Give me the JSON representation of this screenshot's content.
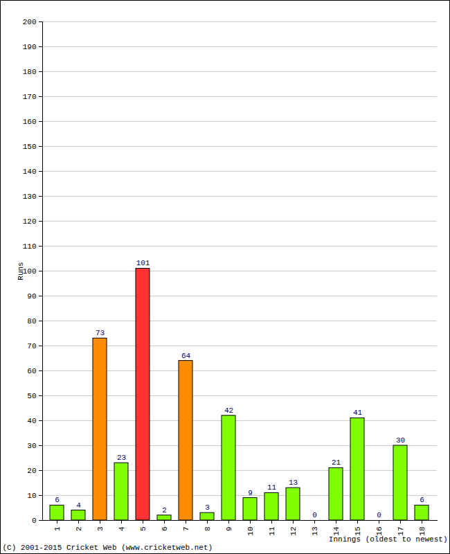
{
  "chart_data": {
    "type": "bar",
    "x_label": "Innings (oldest to newest)",
    "y_label": "Runs",
    "caption": "(C) 2001-2015 Cricket Web (www.cricketweb.net)",
    "categories": [
      "1",
      "2",
      "3",
      "4",
      "5",
      "6",
      "7",
      "8",
      "9",
      "10",
      "11",
      "12",
      "13",
      "14",
      "15",
      "16",
      "17",
      "18"
    ],
    "values": [
      6,
      4,
      73,
      23,
      101,
      2,
      64,
      3,
      42,
      9,
      11,
      13,
      0,
      21,
      41,
      0,
      30,
      6
    ],
    "colors": [
      "#80ff00",
      "#80ff00",
      "#ff8c00",
      "#80ff00",
      "#ff3333",
      "#80ff00",
      "#ff8c00",
      "#80ff00",
      "#80ff00",
      "#80ff00",
      "#80ff00",
      "#80ff00",
      "#80ff00",
      "#80ff00",
      "#80ff00",
      "#80ff00",
      "#80ff00",
      "#80ff00"
    ],
    "ylim": [
      0,
      200
    ],
    "yticks": [
      0,
      10,
      20,
      30,
      40,
      50,
      60,
      70,
      80,
      90,
      100,
      110,
      120,
      130,
      140,
      150,
      160,
      170,
      180,
      190,
      200
    ],
    "grid": true,
    "data_labels": true
  }
}
